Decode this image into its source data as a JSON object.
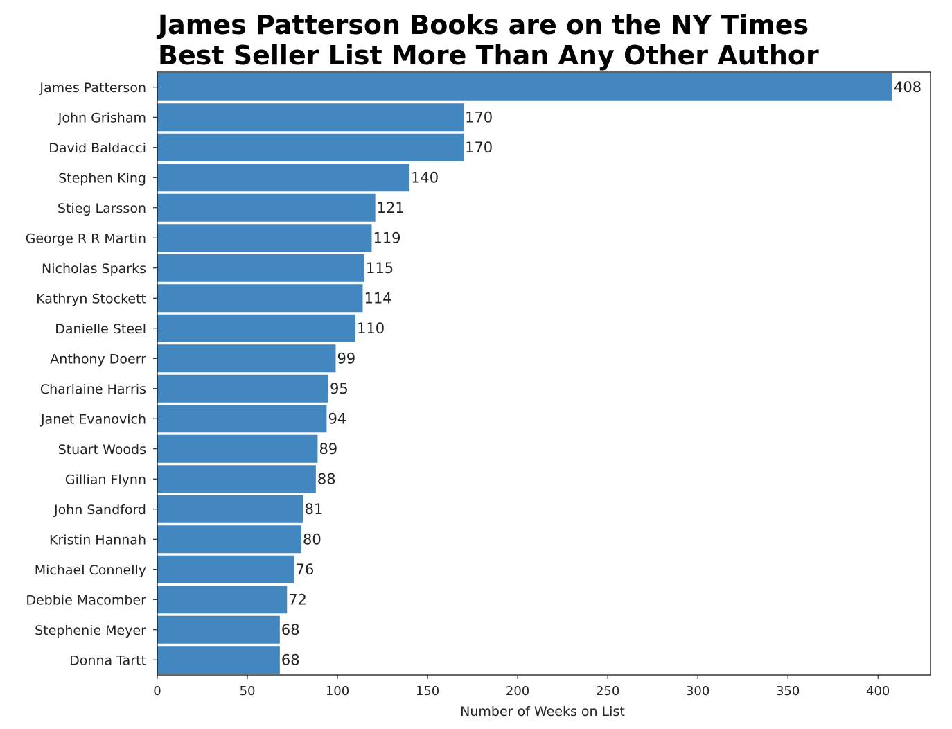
{
  "chart_data": {
    "type": "bar",
    "orientation": "horizontal",
    "title_lines": [
      "James Patterson Books are on the NY Times",
      "Best Seller List More Than Any Other Author"
    ],
    "xlabel": "Number of Weeks on List",
    "ylabel": "",
    "categories": [
      "James Patterson",
      "John Grisham",
      "David Baldacci",
      "Stephen King",
      "Stieg Larsson",
      "George R R Martin",
      "Nicholas Sparks",
      "Kathryn Stockett",
      "Danielle Steel",
      "Anthony Doerr",
      "Charlaine Harris",
      "Janet Evanovich",
      "Stuart Woods",
      "Gillian Flynn",
      "John Sandford",
      "Kristin Hannah",
      "Michael Connelly",
      "Debbie Macomber",
      "Stephenie Meyer",
      "Donna Tartt"
    ],
    "values": [
      408,
      170,
      170,
      140,
      121,
      119,
      115,
      114,
      110,
      99,
      95,
      94,
      89,
      88,
      81,
      80,
      76,
      72,
      68,
      68
    ],
    "xlim": [
      0,
      428
    ],
    "xticks": [
      0,
      50,
      100,
      150,
      200,
      250,
      300,
      350,
      400
    ],
    "grid": false,
    "bar_color": "#4287c0"
  }
}
